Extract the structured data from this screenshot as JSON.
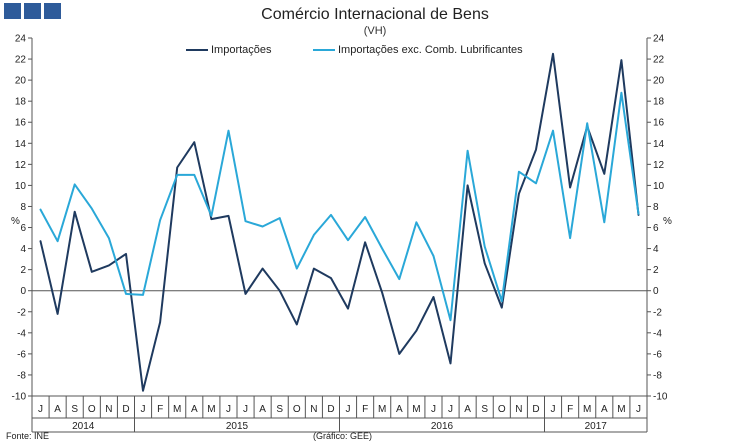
{
  "header": {
    "logo": "ine-logo-squares",
    "title": "Comércio Internacional de Bens",
    "subtitle": "(VH)"
  },
  "footer": {
    "source": "Fonte: INE",
    "credit": "(Gráfico: GEE)"
  },
  "colors": {
    "importacoes": "#1f3a5f",
    "importacoes_exc": "#2aa8d8",
    "axis": "#555555",
    "logo": "#2e5b9a"
  },
  "chart_data": {
    "type": "line",
    "title": "Comércio Internacional de Bens",
    "subtitle": "(VH)",
    "ylabel_left": "%",
    "ylabel_right": "%",
    "ylim": [
      -10,
      24
    ],
    "yticks": [
      -10,
      -8,
      -6,
      -4,
      -2,
      0,
      2,
      4,
      6,
      8,
      10,
      12,
      14,
      16,
      18,
      20,
      22,
      24
    ],
    "grid": false,
    "legend_position": "top-center",
    "categories": [
      "J",
      "A",
      "S",
      "O",
      "N",
      "D",
      "J",
      "F",
      "M",
      "A",
      "M",
      "J",
      "J",
      "A",
      "S",
      "O",
      "N",
      "D",
      "J",
      "F",
      "M",
      "A",
      "M",
      "J",
      "J",
      "A",
      "S",
      "O",
      "N",
      "D",
      "J",
      "F",
      "M",
      "A",
      "M",
      "J"
    ],
    "years": [
      {
        "label": "2014",
        "start": 0,
        "end": 5
      },
      {
        "label": "2015",
        "start": 6,
        "end": 17
      },
      {
        "label": "2016",
        "start": 18,
        "end": 29
      },
      {
        "label": "2017",
        "start": 30,
        "end": 35
      }
    ],
    "series": [
      {
        "name": "Importações",
        "color": "#1f3a5f",
        "values": [
          4.7,
          -2.2,
          7.5,
          1.8,
          2.4,
          3.5,
          -9.5,
          -3.0,
          11.7,
          14.1,
          6.8,
          7.1,
          -0.3,
          2.1,
          0.0,
          -3.2,
          2.1,
          1.2,
          -1.7,
          4.6,
          -0.2,
          -6.0,
          -3.8,
          -0.6,
          -6.9,
          10.0,
          2.6,
          -1.6,
          9.2,
          13.4,
          22.5,
          9.8,
          15.6,
          11.1,
          21.9,
          7.2
        ]
      },
      {
        "name": "Importações exc. Comb. Lubrificantes",
        "color": "#2aa8d8",
        "values": [
          7.7,
          4.7,
          10.1,
          7.8,
          5.0,
          -0.3,
          -0.4,
          6.7,
          11.0,
          11.0,
          7.1,
          15.2,
          6.6,
          6.1,
          6.9,
          2.1,
          5.3,
          7.2,
          4.8,
          7.0,
          4.0,
          1.1,
          6.5,
          3.3,
          -2.8,
          13.3,
          4.2,
          -1.0,
          11.3,
          10.2,
          15.2,
          5.0,
          15.9,
          6.5,
          18.8,
          7.3
        ]
      }
    ]
  }
}
